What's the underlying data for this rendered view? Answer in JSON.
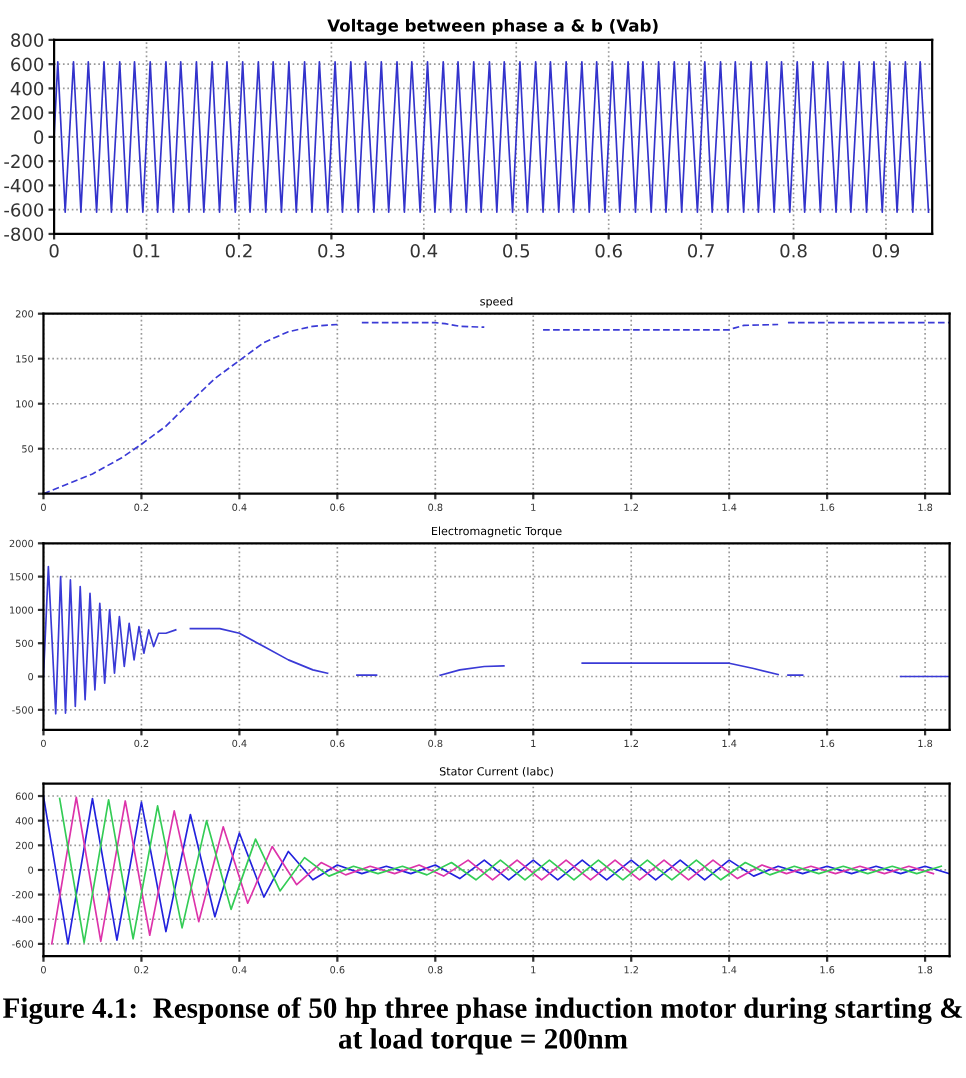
{
  "chart_data": [
    {
      "type": "line",
      "title": "Voltage between phase a & b (Vab)",
      "xlim": [
        0,
        0.95
      ],
      "ylim": [
        -800,
        800
      ],
      "xticks": [
        0,
        0.1,
        0.2,
        0.3,
        0.4,
        0.5,
        0.6,
        0.7,
        0.8,
        0.9
      ],
      "yticks": [
        -800,
        -600,
        -400,
        -200,
        0,
        200,
        400,
        600,
        800
      ],
      "grid": true,
      "line_style": "solid",
      "series": [
        {
          "color": "#3333cc",
          "x": [
            0,
            0.004,
            0.012,
            0.021,
            0.029,
            0.037,
            0.046,
            0.054,
            0.062,
            0.071,
            0.079,
            0.087,
            0.096,
            0.104,
            0.112,
            0.121,
            0.129,
            0.137,
            0.146,
            0.154,
            0.162,
            0.171,
            0.179,
            0.187,
            0.196,
            0.204,
            0.212,
            0.221,
            0.229,
            0.237,
            0.246,
            0.254,
            0.262,
            0.271,
            0.279,
            0.287,
            0.296,
            0.304,
            0.312,
            0.321,
            0.329,
            0.337,
            0.346,
            0.354,
            0.362,
            0.371,
            0.379,
            0.387,
            0.396,
            0.404,
            0.412,
            0.421,
            0.429,
            0.437,
            0.446,
            0.454,
            0.462,
            0.471,
            0.479,
            0.487,
            0.496,
            0.504,
            0.512,
            0.521,
            0.529,
            0.537,
            0.546,
            0.554,
            0.562,
            0.571,
            0.579,
            0.587,
            0.596,
            0.604,
            0.612,
            0.621,
            0.629,
            0.637,
            0.646,
            0.654,
            0.662,
            0.671,
            0.679,
            0.687,
            0.696,
            0.704,
            0.712,
            0.721,
            0.729,
            0.737,
            0.746,
            0.754,
            0.762,
            0.771,
            0.779,
            0.787,
            0.796,
            0.804,
            0.812,
            0.821,
            0.829,
            0.837,
            0.846,
            0.854,
            0.862,
            0.871,
            0.879,
            0.887,
            0.896,
            0.904,
            0.912,
            0.921,
            0.929,
            0.937,
            0.946
          ],
          "values": [
            0,
            620,
            -620,
            620,
            -620,
            620,
            -620,
            620,
            -620,
            620,
            -620,
            620,
            -620,
            620,
            -620,
            620,
            -620,
            620,
            -620,
            620,
            -620,
            620,
            -620,
            620,
            -620,
            620,
            -620,
            620,
            -620,
            620,
            -620,
            620,
            -620,
            620,
            -620,
            620,
            -620,
            620,
            -620,
            620,
            -620,
            620,
            -620,
            620,
            -620,
            620,
            -620,
            620,
            -620,
            620,
            -620,
            620,
            -620,
            620,
            -620,
            620,
            -620,
            620,
            -620,
            620,
            -620,
            620,
            -620,
            620,
            -620,
            620,
            -620,
            620,
            -620,
            620,
            -620,
            620,
            -620,
            620,
            -620,
            620,
            -620,
            620,
            -620,
            620,
            -620,
            620,
            -620,
            620,
            -620,
            620,
            -620,
            620,
            -620,
            620,
            -620,
            620,
            -620,
            620,
            -620,
            620,
            -620,
            620,
            -620,
            620,
            -620,
            620,
            -620,
            620,
            -620,
            620,
            -620,
            620,
            -620,
            620,
            -620,
            620,
            -620,
            620,
            -620
          ]
        }
      ]
    },
    {
      "type": "line",
      "title": "speed",
      "xlim": [
        0,
        1.85
      ],
      "ylim": [
        0,
        200
      ],
      "xticks": [
        0,
        0.2,
        0.4,
        0.6,
        0.8,
        1,
        1.2,
        1.4,
        1.6,
        1.8
      ],
      "yticks": [
        {
          "value": 0,
          "label": null
        },
        50,
        100,
        150,
        200
      ],
      "grid": true,
      "line_style": "dashed",
      "series": [
        {
          "color": "#3a3ad6",
          "x": [
            0,
            0.1,
            0.16,
            0.2,
            0.25,
            0.3,
            0.35,
            0.4,
            0.45,
            0.5,
            0.55,
            0.6,
            0.62,
            0.65,
            0.8,
            0.82,
            0.85,
            0.9,
            0.95,
            1.02,
            1.4,
            1.41,
            1.43,
            1.5,
            1.51,
            1.52,
            1.85
          ],
          "values": [
            0,
            22,
            40,
            55,
            75,
            102,
            128,
            148,
            168,
            180,
            186,
            188,
            null,
            190,
            190,
            189,
            186,
            185,
            null,
            182,
            182,
            184,
            187,
            188,
            null,
            190,
            190
          ]
        }
      ]
    },
    {
      "type": "line",
      "title": "Electromagnetic Torque",
      "xlim": [
        0,
        1.85
      ],
      "ylim": [
        -800,
        2000
      ],
      "xticks": [
        0,
        0.2,
        0.4,
        0.6,
        0.8,
        1,
        1.2,
        1.4,
        1.6,
        1.8
      ],
      "yticks": [
        -500,
        0,
        500,
        1000,
        1500,
        2000
      ],
      "grid": true,
      "line_style": "solid",
      "series": [
        {
          "color": "#3a3ad6",
          "x": [
            0,
            0.01,
            0.025,
            0.035,
            0.045,
            0.055,
            0.065,
            0.075,
            0.085,
            0.095,
            0.105,
            0.115,
            0.125,
            0.135,
            0.145,
            0.155,
            0.165,
            0.175,
            0.185,
            0.195,
            0.205,
            0.215,
            0.225,
            0.235,
            0.25,
            0.27,
            0.285,
            0.3,
            0.36,
            0.4,
            0.45,
            0.5,
            0.55,
            0.58,
            0.61,
            0.64,
            0.68,
            0.75,
            0.81,
            0.85,
            0.9,
            0.94,
            1.0,
            1.1,
            1.4,
            1.45,
            1.5,
            1.51,
            1.52,
            1.55,
            1.65,
            1.75,
            1.85
          ],
          "values": [
            0,
            1650,
            -560,
            1500,
            -550,
            1450,
            -450,
            1350,
            -350,
            1250,
            -200,
            1100,
            -100,
            1000,
            50,
            900,
            150,
            800,
            250,
            750,
            350,
            700,
            450,
            650,
            650,
            700,
            null,
            720,
            720,
            650,
            450,
            250,
            100,
            50,
            null,
            20,
            20,
            null,
            20,
            100,
            150,
            160,
            null,
            200,
            200,
            120,
            30,
            null,
            20,
            20,
            null,
            0,
            0
          ]
        }
      ]
    },
    {
      "type": "line",
      "title": "Stator Current (Iabc)",
      "xlim": [
        0,
        1.85
      ],
      "ylim": [
        -700,
        700
      ],
      "xticks": [
        0,
        0.2,
        0.4,
        0.6,
        0.8,
        1,
        1.2,
        1.4,
        1.6,
        1.8
      ],
      "yticks": [
        -600,
        -400,
        -200,
        0,
        200,
        400,
        600
      ],
      "grid": true,
      "line_style": "solid",
      "annotations": [
        "Figure 4.1:  Response of 50 hp three phase induction motor during starting & at load torque = 200nm"
      ],
      "series": [
        {
          "color": "#2222dd",
          "x": [
            0,
            0.05,
            0.1,
            0.15,
            0.2,
            0.25,
            0.3,
            0.35,
            0.4,
            0.45,
            0.5,
            0.55,
            0.6,
            0.65,
            0.7,
            0.75,
            0.8,
            0.85,
            0.9,
            0.95,
            1.0,
            1.05,
            1.1,
            1.15,
            1.2,
            1.25,
            1.3,
            1.35,
            1.4,
            1.45,
            1.5,
            1.55,
            1.6,
            1.65,
            1.7,
            1.75,
            1.8,
            1.85
          ],
          "values": [
            600,
            -600,
            580,
            -570,
            550,
            -500,
            450,
            -380,
            300,
            -220,
            150,
            -80,
            40,
            -30,
            30,
            -30,
            40,
            -70,
            80,
            -80,
            80,
            -80,
            80,
            -80,
            80,
            -80,
            80,
            -80,
            80,
            -50,
            30,
            -30,
            30,
            -30,
            30,
            -30,
            30,
            -30
          ]
        },
        {
          "color": "#dd33aa",
          "x": [
            0.017,
            0.067,
            0.117,
            0.167,
            0.217,
            0.267,
            0.317,
            0.367,
            0.417,
            0.467,
            0.517,
            0.567,
            0.617,
            0.667,
            0.717,
            0.767,
            0.817,
            0.867,
            0.917,
            0.967,
            1.017,
            1.067,
            1.117,
            1.167,
            1.217,
            1.267,
            1.317,
            1.367,
            1.417,
            1.467,
            1.517,
            1.567,
            1.617,
            1.667,
            1.717,
            1.767,
            1.817
          ],
          "values": [
            -600,
            590,
            -580,
            560,
            -530,
            480,
            -420,
            350,
            -270,
            190,
            -120,
            60,
            -40,
            30,
            -30,
            40,
            -50,
            80,
            -80,
            80,
            -80,
            80,
            -80,
            80,
            -80,
            80,
            -80,
            80,
            -70,
            40,
            -30,
            30,
            -30,
            30,
            -30,
            30,
            -30
          ]
        },
        {
          "color": "#33cc55",
          "x": [
            0.033,
            0.083,
            0.133,
            0.183,
            0.233,
            0.283,
            0.333,
            0.383,
            0.433,
            0.483,
            0.533,
            0.583,
            0.633,
            0.683,
            0.733,
            0.783,
            0.833,
            0.883,
            0.933,
            0.983,
            1.033,
            1.083,
            1.133,
            1.183,
            1.233,
            1.283,
            1.333,
            1.383,
            1.433,
            1.483,
            1.533,
            1.583,
            1.633,
            1.683,
            1.733,
            1.783,
            1.833
          ],
          "values": [
            580,
            -590,
            570,
            -560,
            520,
            -470,
            400,
            -320,
            250,
            -170,
            100,
            -50,
            30,
            -30,
            30,
            -40,
            60,
            -80,
            80,
            -80,
            80,
            -80,
            80,
            -80,
            80,
            -80,
            80,
            -80,
            60,
            -40,
            30,
            -30,
            30,
            -30,
            30,
            -30,
            30
          ]
        }
      ]
    }
  ]
}
